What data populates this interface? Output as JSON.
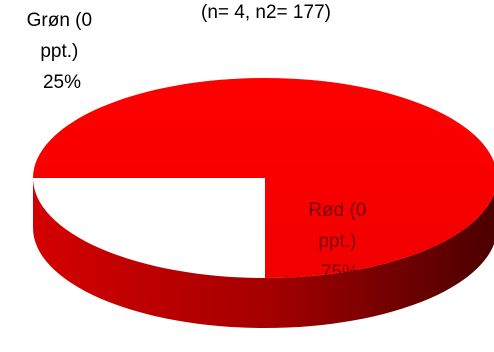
{
  "chart_data": {
    "type": "pie",
    "subtitle": "(n= 4, n2= 177)",
    "slices": [
      {
        "label_lines": [
          "Grøn (0",
          "ppt.)",
          "25%"
        ],
        "value": 25,
        "color": "#92d050"
      },
      {
        "label_lines": [
          "Rød (0",
          "ppt.)",
          "75%"
        ],
        "value": 75,
        "color": "#ff0000"
      }
    ],
    "style": "3d",
    "label_color_on_slice": "#7b0000",
    "label_color_outside": "#000000"
  }
}
